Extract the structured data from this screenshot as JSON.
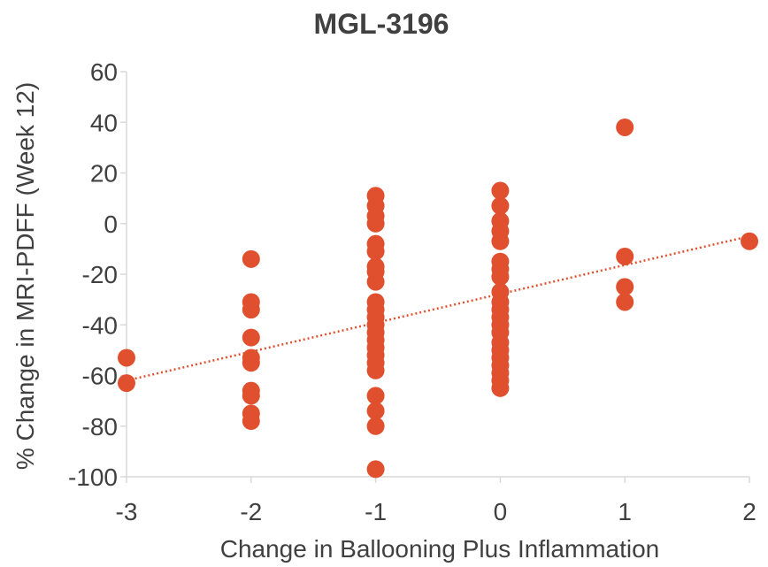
{
  "chart_data": {
    "type": "scatter",
    "title": "MGL-3196",
    "xlabel": "Change in Ballooning Plus Inflammation",
    "ylabel": "% Change in MRI-PDFF (Week 12)",
    "xlim": [
      -3,
      2
    ],
    "ylim": [
      -100,
      60
    ],
    "xticks": [
      -3,
      -2,
      -1,
      0,
      1,
      2
    ],
    "yticks": [
      -100,
      -80,
      -60,
      -40,
      -20,
      0,
      20,
      40,
      60
    ],
    "grid": false,
    "legend": "none",
    "marker_color": "#E0502F",
    "trendline": {
      "style": "dotted",
      "color": "#E0502F",
      "x": [
        -3,
        2
      ],
      "y": [
        -62,
        -5
      ]
    },
    "points": [
      [
        -3,
        -53
      ],
      [
        -3,
        -63
      ],
      [
        -2,
        -14
      ],
      [
        -2,
        -31
      ],
      [
        -2,
        -34
      ],
      [
        -2,
        -45
      ],
      [
        -2,
        -53
      ],
      [
        -2,
        -55
      ],
      [
        -2,
        -66
      ],
      [
        -2,
        -68
      ],
      [
        -2,
        -75
      ],
      [
        -2,
        -78
      ],
      [
        -1,
        11
      ],
      [
        -1,
        7
      ],
      [
        -1,
        3
      ],
      [
        -1,
        0
      ],
      [
        -1,
        -8
      ],
      [
        -1,
        -11
      ],
      [
        -1,
        -17
      ],
      [
        -1,
        -19
      ],
      [
        -1,
        -23
      ],
      [
        -1,
        -31
      ],
      [
        -1,
        -34
      ],
      [
        -1,
        -37
      ],
      [
        -1,
        -40
      ],
      [
        -1,
        -43
      ],
      [
        -1,
        -46
      ],
      [
        -1,
        -49
      ],
      [
        -1,
        -52
      ],
      [
        -1,
        -55
      ],
      [
        -1,
        -58
      ],
      [
        -1,
        -68
      ],
      [
        -1,
        -74
      ],
      [
        -1,
        -80
      ],
      [
        -1,
        -97
      ],
      [
        0,
        13
      ],
      [
        0,
        7
      ],
      [
        0,
        1
      ],
      [
        0,
        -3
      ],
      [
        0,
        -7
      ],
      [
        0,
        -15
      ],
      [
        0,
        -18
      ],
      [
        0,
        -21
      ],
      [
        0,
        -27
      ],
      [
        0,
        -31
      ],
      [
        0,
        -34
      ],
      [
        0,
        -37
      ],
      [
        0,
        -40
      ],
      [
        0,
        -43
      ],
      [
        0,
        -47
      ],
      [
        0,
        -50
      ],
      [
        0,
        -53
      ],
      [
        0,
        -56
      ],
      [
        0,
        -59
      ],
      [
        0,
        -62
      ],
      [
        0,
        -65
      ],
      [
        1,
        38
      ],
      [
        1,
        -13
      ],
      [
        1,
        -25
      ],
      [
        1,
        -31
      ],
      [
        2,
        -7
      ]
    ]
  }
}
